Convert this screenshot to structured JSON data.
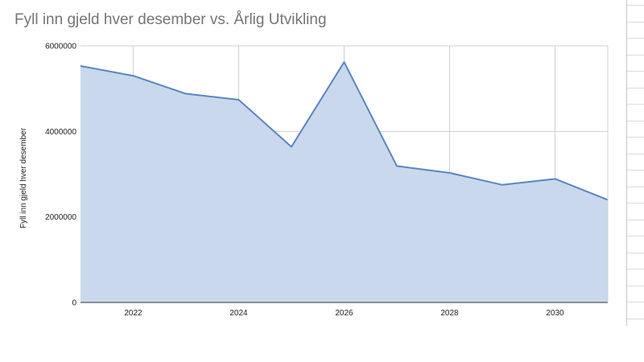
{
  "chart_data": {
    "type": "area",
    "title": "Fyll inn gjeld hver desember vs. Årlig Utvikling",
    "xlabel": "",
    "ylabel": "Fyll inn gjeld hver desember",
    "x": [
      2021,
      2022,
      2023,
      2024,
      2025,
      2026,
      2027,
      2028,
      2029,
      2030,
      2031
    ],
    "series": [
      {
        "values": [
          5530000,
          5300000,
          4880000,
          4740000,
          3640000,
          5620000,
          3190000,
          3030000,
          2750000,
          2890000,
          2400000
        ]
      }
    ],
    "xlim": [
      2021,
      2031
    ],
    "ylim": [
      0,
      6000000
    ],
    "xticks": [
      "2022",
      "2024",
      "2026",
      "2028",
      "2030"
    ],
    "yticks": [
      "0",
      "2000000",
      "4000000",
      "6000000"
    ],
    "grid": true,
    "colors": {
      "line": "#5b85c0",
      "fill": "#c9d8ec",
      "grid": "#d0d0d0",
      "title": "#757575"
    }
  }
}
